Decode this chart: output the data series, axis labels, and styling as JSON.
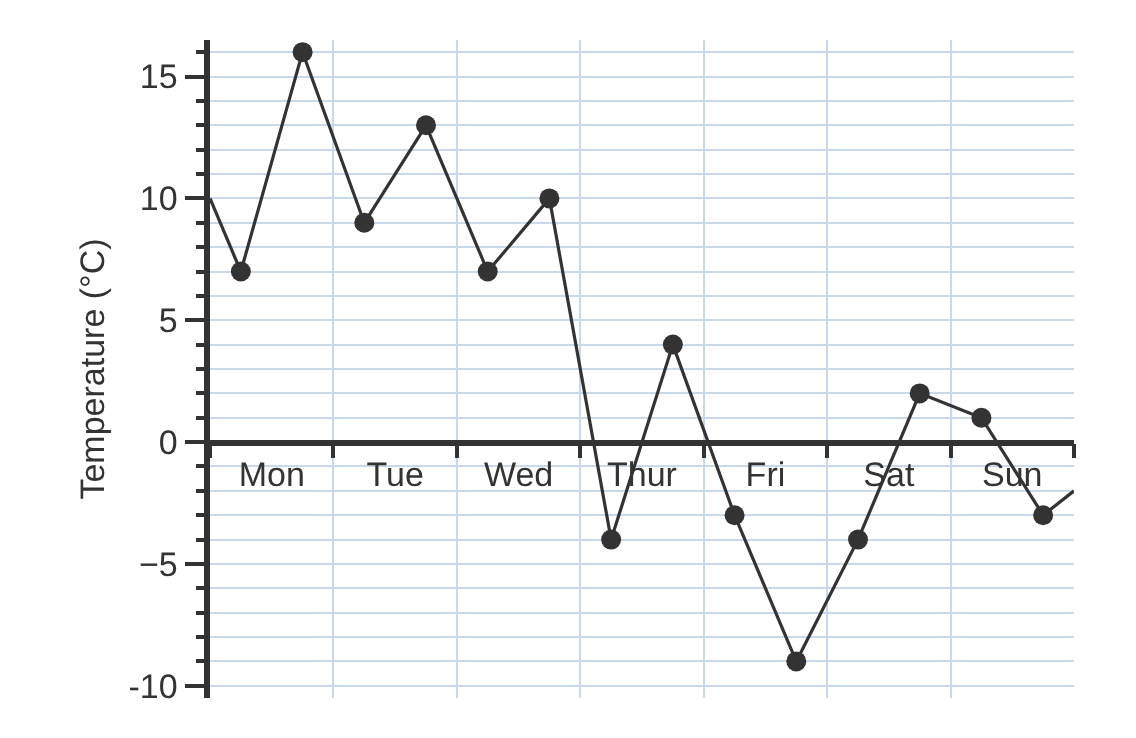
{
  "chart_data": {
    "type": "line",
    "ylabel": "Temperature (°C)",
    "categories": [
      null,
      null,
      "Mon",
      null,
      null,
      null,
      "Tue",
      null,
      null,
      null,
      "Wed",
      null,
      null,
      null,
      "Thur",
      null,
      null,
      null,
      "Fri",
      null,
      null,
      null,
      "Sat",
      null,
      null,
      null,
      "Sun",
      null,
      null
    ],
    "series": [
      {
        "color": "#333333",
        "values": [
          10,
          7,
          null,
          null,
          null,
          null,
          null,
          null,
          null,
          null,
          null,
          null,
          null,
          null,
          null,
          null,
          null,
          null,
          null,
          null,
          null,
          null,
          null,
          null,
          null,
          null,
          null,
          null,
          null
        ]
      },
      {
        "color": "#333333",
        "marker": "circle",
        "values": [
          null,
          7,
          null,
          16,
          null,
          9,
          null,
          13,
          null,
          7,
          null,
          10,
          null,
          -4,
          null,
          4,
          null,
          -3,
          null,
          -9,
          null,
          -4,
          null,
          2,
          null,
          1,
          null,
          -3,
          null
        ]
      },
      {
        "color": "#333333",
        "values": [
          null,
          null,
          null,
          null,
          null,
          null,
          null,
          null,
          null,
          null,
          null,
          null,
          null,
          null,
          null,
          null,
          null,
          null,
          null,
          null,
          null,
          null,
          null,
          null,
          null,
          null,
          null,
          -3,
          -2
        ]
      }
    ],
    "ylim": [
      -10.5,
      16.5
    ],
    "yticks": [
      -10,
      {
        "value": -9,
        "label": null
      },
      {
        "value": -8,
        "label": null
      },
      {
        "value": -7,
        "label": null
      },
      {
        "value": -6,
        "label": null
      },
      {
        "value": -5,
        "label": "−5"
      },
      {
        "value": -4,
        "label": null
      },
      {
        "value": -3,
        "label": null
      },
      {
        "value": -2,
        "label": null
      },
      {
        "value": -1,
        "label": null
      },
      0,
      {
        "value": 1,
        "label": null
      },
      {
        "value": 2,
        "label": null
      },
      {
        "value": 3,
        "label": null
      },
      {
        "value": 4,
        "label": null
      },
      5,
      {
        "value": 6,
        "label": null
      },
      {
        "value": 7,
        "label": null
      },
      {
        "value": 8,
        "label": null
      },
      {
        "value": 9,
        "label": null
      },
      10,
      {
        "value": 11,
        "label": null
      },
      {
        "value": 12,
        "label": null
      },
      {
        "value": 13,
        "label": null
      },
      {
        "value": 14,
        "label": null
      },
      15,
      {
        "value": 16,
        "label": null
      }
    ],
    "grid": true
  }
}
